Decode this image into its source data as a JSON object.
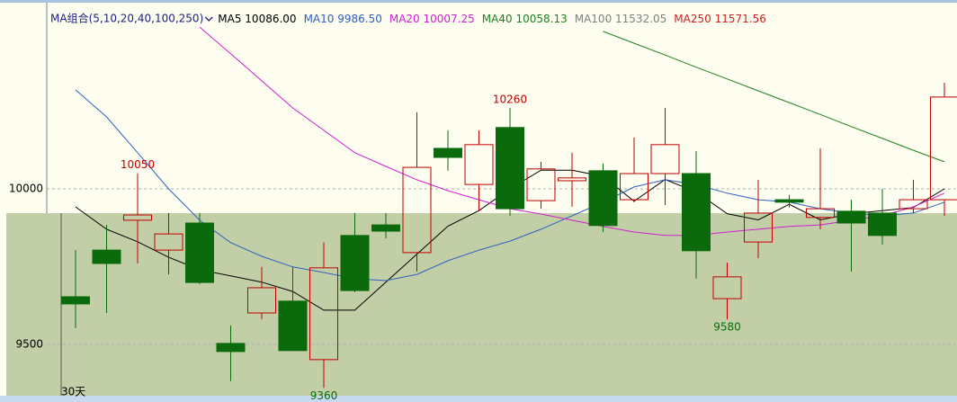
{
  "chart_data": {
    "type": "candlestick",
    "indicator_label": "MA组合(5,10,20,40,100,250)",
    "period_label": "30天",
    "legend": [
      {
        "name": "MA5",
        "value": "10086.00",
        "color": "#000000"
      },
      {
        "name": "MA10",
        "value": "9986.50",
        "color": "#3060c0"
      },
      {
        "name": "MA20",
        "value": "10007.25",
        "color": "#d020d0"
      },
      {
        "name": "MA40",
        "value": "10058.13",
        "color": "#208020"
      },
      {
        "name": "MA100",
        "value": "11532.05",
        "color": "#808080"
      },
      {
        "name": "MA250",
        "value": "11571.56",
        "color": "#d02020"
      }
    ],
    "open": [
      9653,
      9803,
      9899,
      9803,
      9890,
      9503,
      9601,
      9639,
      9451,
      9850,
      9884,
      9795,
      10130,
      10014,
      10197,
      9962,
      10026,
      10058,
      9965,
      10049,
      10049,
      9647,
      9829,
      9965,
      9908,
      9928,
      9922,
      9936,
      9965
    ],
    "close": [
      9630,
      9760,
      9916,
      9855,
      9699,
      9477,
      9682,
      9480,
      9746,
      9673,
      9864,
      10069,
      10101,
      10142,
      9936,
      10064,
      10035,
      9882,
      10049,
      10142,
      9801,
      9717,
      9922,
      9957,
      9936,
      9890,
      9850,
      9965,
      10295
    ],
    "high": [
      9803,
      9884,
      10050,
      9922,
      9922,
      9561,
      9749,
      9749,
      9827,
      9922,
      9922,
      10246,
      10188,
      10188,
      10260,
      10087,
      10116,
      10081,
      10165,
      10260,
      10121,
      9763,
      10029,
      9980,
      10130,
      9965,
      10000,
      10029,
      10341
    ],
    "low": [
      9552,
      9601,
      9760,
      9725,
      9694,
      9382,
      9581,
      9480,
      9360,
      9668,
      9841,
      9734,
      10058,
      9928,
      9913,
      9936,
      9942,
      9861,
      9957,
      9948,
      9711,
      9580,
      9777,
      9940,
      9870,
      9734,
      9821,
      9922,
      9913
    ],
    "series": [
      {
        "name": "MA5",
        "color": "#000000",
        "values": [
          9942,
          9870,
          9830,
          9780,
          9740,
          9720,
          9700,
          9670,
          9610,
          9610,
          9700,
          9790,
          9880,
          9930,
          10000,
          10060,
          10060,
          10040,
          9960,
          10030,
          9990,
          9920,
          9900,
          9950,
          9900,
          9920,
          9930,
          9940,
          10000
        ]
      },
      {
        "name": "MA10",
        "color": "#3060c0",
        "values": [
          10318,
          10231,
          10116,
          10000,
          9899,
          9827,
          9783,
          9749,
          9731,
          9711,
          9705,
          9725,
          9769,
          9803,
          9832,
          9870,
          9913,
          9957,
          10006,
          10029,
          10014,
          9986,
          9965,
          9957,
          9936,
          9922,
          9913,
          9922,
          9957
        ]
      },
      {
        "name": "MA20",
        "color": "#d020d0",
        "values": [
          null,
          null,
          null,
          null,
          10520,
          10434,
          10347,
          10260,
          10188,
          10116,
          10072,
          10029,
          9994,
          9965,
          9936,
          9919,
          9899,
          9879,
          9861,
          9850,
          9850,
          9861,
          9870,
          9879,
          9884,
          9899,
          9913,
          9942,
          9986
        ]
      },
      {
        "name": "MA40",
        "color": "#208020",
        "values": [
          null,
          null,
          null,
          null,
          null,
          null,
          null,
          null,
          null,
          null,
          null,
          null,
          null,
          null,
          null,
          null,
          null,
          10506,
          10468,
          10430,
          10391,
          10353,
          10315,
          10277,
          10239,
          10200,
          10162,
          10124,
          10087
        ]
      }
    ],
    "annotations": [
      10260,
      10050,
      9580,
      9360
    ],
    "up_color": "#c00000",
    "down_color": "#0b6a0b",
    "ylim": [
      9335,
      10578
    ],
    "yticks": [
      9500,
      10000
    ]
  }
}
